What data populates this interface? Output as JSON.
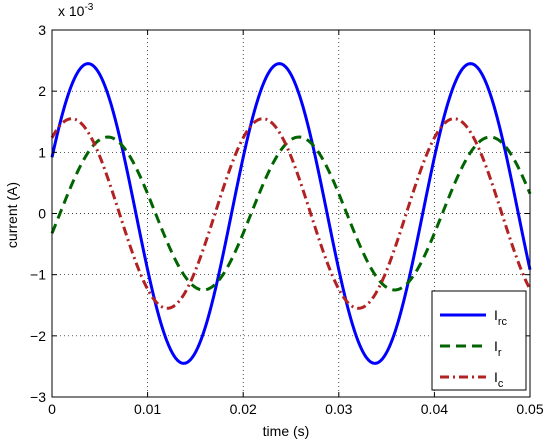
{
  "chart_data": {
    "type": "line",
    "title": "",
    "xlabel": "time (s)",
    "ylabel": "current (A)",
    "y_exponent_label": "x 10",
    "y_exponent_power": "-3",
    "xlim": [
      0,
      0.05
    ],
    "ylim": [
      -3,
      3
    ],
    "x_ticks": [
      "0",
      "0.01",
      "0.02",
      "0.03",
      "0.04",
      "0.05"
    ],
    "y_ticks": [
      "−3",
      "−2",
      "−1",
      "0",
      "1",
      "2",
      "3"
    ],
    "grid": true,
    "legend_position": "bottom-right",
    "frequency_hz": 50,
    "series": [
      {
        "name_main": "I",
        "name_sub": "rc",
        "style": "solid",
        "color": "#0000ff",
        "amplitude": 2.45,
        "phase_deg": 22,
        "x": [
          0,
          0.0025,
          0.005,
          0.0075,
          0.01,
          0.0125,
          0.015,
          0.0175,
          0.02,
          0.0225,
          0.025,
          0.0275,
          0.03,
          0.0325,
          0.035,
          0.0375,
          0.04,
          0.0425,
          0.045,
          0.0475,
          0.05
        ],
        "y": [
          0.92,
          2.26,
          2.27,
          0.93,
          -0.92,
          -2.26,
          -2.27,
          -0.93,
          0.92,
          2.26,
          2.27,
          0.93,
          -0.92,
          -2.26,
          -2.27,
          -0.93,
          0.92,
          2.26,
          2.27,
          0.93,
          -0.92
        ]
      },
      {
        "name_main": "I",
        "name_sub": "r",
        "style": "dashed",
        "color": "#006400",
        "amplitude": 1.25,
        "phase_deg": -15,
        "x": [
          0,
          0.0025,
          0.005,
          0.0075,
          0.01,
          0.0125,
          0.015,
          0.0175,
          0.02,
          0.0225,
          0.025,
          0.0275,
          0.03,
          0.0325,
          0.035,
          0.0375,
          0.04,
          0.0425,
          0.045,
          0.0475,
          0.05
        ],
        "y": [
          -0.32,
          0.66,
          1.21,
          0.99,
          0.32,
          -0.66,
          -1.21,
          -0.99,
          -0.32,
          0.66,
          1.21,
          0.99,
          0.32,
          -0.66,
          -1.21,
          -0.99,
          -0.32,
          0.66,
          1.21,
          0.99,
          0.32
        ]
      },
      {
        "name_main": "I",
        "name_sub": "c",
        "style": "dashdot",
        "color": "#b22222",
        "amplitude": 1.55,
        "phase_deg": 53,
        "x": [
          0,
          0.0025,
          0.005,
          0.0075,
          0.01,
          0.0125,
          0.015,
          0.0175,
          0.02,
          0.0225,
          0.025,
          0.0275,
          0.03,
          0.0325,
          0.035,
          0.0375,
          0.04,
          0.0425,
          0.045,
          0.0475,
          0.05
        ],
        "y": [
          1.24,
          1.55,
          0.39,
          -0.93,
          -1.24,
          -1.55,
          -0.39,
          0.93,
          1.24,
          1.55,
          0.39,
          -0.93,
          -1.24,
          -1.55,
          -0.39,
          0.93,
          1.24,
          1.55,
          0.39,
          -0.93,
          -1.24
        ]
      }
    ]
  }
}
